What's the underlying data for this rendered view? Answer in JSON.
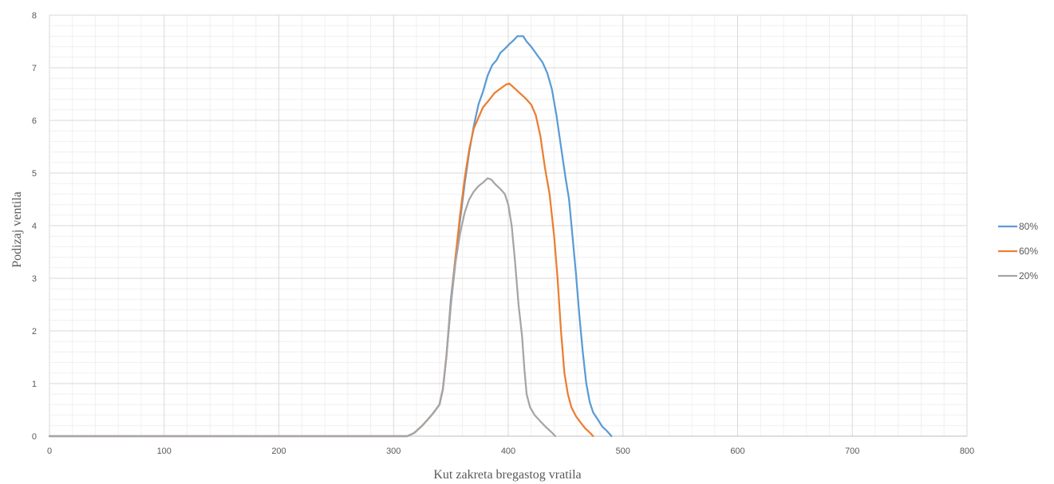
{
  "chart_data": {
    "type": "line",
    "title": "",
    "xlabel": "Kut zakreta bregastog vratila",
    "ylabel": "Podizaj ventila",
    "xlim": [
      0,
      800
    ],
    "ylim": [
      0,
      8
    ],
    "x_ticks": [
      "0",
      "100",
      "200",
      "300",
      "400",
      "500",
      "600",
      "700",
      "800"
    ],
    "y_ticks": [
      "0",
      "1",
      "2",
      "3",
      "4",
      "5",
      "6",
      "7",
      "8"
    ],
    "x_major_step": 100,
    "x_minor_step": 20,
    "y_major_step": 1,
    "y_minor_step": 0.2,
    "grid": true,
    "legend_position": "right",
    "series": [
      {
        "name": "80%",
        "color": "#5B9BD5",
        "points": [
          [
            0,
            0
          ],
          [
            312,
            0
          ],
          [
            318,
            0.06
          ],
          [
            325,
            0.2
          ],
          [
            330,
            0.32
          ],
          [
            335,
            0.45
          ],
          [
            340,
            0.6
          ],
          [
            343,
            0.9
          ],
          [
            346,
            1.5
          ],
          [
            350,
            2.6
          ],
          [
            354,
            3.4
          ],
          [
            358,
            4.1
          ],
          [
            362,
            4.8
          ],
          [
            366,
            5.4
          ],
          [
            370,
            5.9
          ],
          [
            374,
            6.3
          ],
          [
            378,
            6.55
          ],
          [
            382,
            6.85
          ],
          [
            386,
            7.05
          ],
          [
            390,
            7.15
          ],
          [
            393,
            7.28
          ],
          [
            397,
            7.36
          ],
          [
            401,
            7.45
          ],
          [
            405,
            7.53
          ],
          [
            408,
            7.6
          ],
          [
            413,
            7.6
          ],
          [
            416,
            7.5
          ],
          [
            420,
            7.4
          ],
          [
            425,
            7.25
          ],
          [
            430,
            7.1
          ],
          [
            434,
            6.9
          ],
          [
            438,
            6.6
          ],
          [
            442,
            6.1
          ],
          [
            446,
            5.5
          ],
          [
            450,
            4.9
          ],
          [
            453,
            4.5
          ],
          [
            456,
            3.8
          ],
          [
            459,
            3.1
          ],
          [
            462,
            2.3
          ],
          [
            465,
            1.6
          ],
          [
            468,
            1.0
          ],
          [
            471,
            0.65
          ],
          [
            474,
            0.45
          ],
          [
            478,
            0.32
          ],
          [
            482,
            0.18
          ],
          [
            486,
            0.1
          ],
          [
            490,
            0
          ]
        ]
      },
      {
        "name": "60%",
        "color": "#ED7D31",
        "points": [
          [
            0,
            0
          ],
          [
            312,
            0
          ],
          [
            318,
            0.06
          ],
          [
            325,
            0.2
          ],
          [
            330,
            0.32
          ],
          [
            335,
            0.45
          ],
          [
            340,
            0.6
          ],
          [
            343,
            0.9
          ],
          [
            346,
            1.5
          ],
          [
            350,
            2.5
          ],
          [
            354,
            3.4
          ],
          [
            358,
            4.2
          ],
          [
            362,
            4.9
          ],
          [
            366,
            5.45
          ],
          [
            370,
            5.85
          ],
          [
            374,
            6.05
          ],
          [
            378,
            6.25
          ],
          [
            383,
            6.38
          ],
          [
            388,
            6.52
          ],
          [
            393,
            6.6
          ],
          [
            398,
            6.68
          ],
          [
            401,
            6.7
          ],
          [
            405,
            6.62
          ],
          [
            410,
            6.52
          ],
          [
            415,
            6.42
          ],
          [
            420,
            6.3
          ],
          [
            424,
            6.1
          ],
          [
            428,
            5.7
          ],
          [
            432,
            5.1
          ],
          [
            436,
            4.6
          ],
          [
            440,
            3.8
          ],
          [
            443,
            3.0
          ],
          [
            446,
            2.0
          ],
          [
            449,
            1.2
          ],
          [
            452,
            0.8
          ],
          [
            455,
            0.55
          ],
          [
            459,
            0.38
          ],
          [
            463,
            0.26
          ],
          [
            467,
            0.15
          ],
          [
            471,
            0.07
          ],
          [
            474,
            0
          ]
        ]
      },
      {
        "name": "20%",
        "color": "#A5A5A5",
        "points": [
          [
            0,
            0
          ],
          [
            312,
            0
          ],
          [
            318,
            0.06
          ],
          [
            325,
            0.2
          ],
          [
            330,
            0.32
          ],
          [
            335,
            0.45
          ],
          [
            340,
            0.6
          ],
          [
            343,
            0.9
          ],
          [
            346,
            1.5
          ],
          [
            350,
            2.5
          ],
          [
            354,
            3.3
          ],
          [
            358,
            3.85
          ],
          [
            362,
            4.25
          ],
          [
            366,
            4.5
          ],
          [
            370,
            4.65
          ],
          [
            374,
            4.75
          ],
          [
            378,
            4.82
          ],
          [
            382,
            4.9
          ],
          [
            385,
            4.88
          ],
          [
            389,
            4.78
          ],
          [
            393,
            4.7
          ],
          [
            397,
            4.6
          ],
          [
            400,
            4.4
          ],
          [
            403,
            4.0
          ],
          [
            406,
            3.3
          ],
          [
            409,
            2.5
          ],
          [
            412,
            1.9
          ],
          [
            414,
            1.3
          ],
          [
            416,
            0.8
          ],
          [
            419,
            0.55
          ],
          [
            423,
            0.4
          ],
          [
            428,
            0.28
          ],
          [
            433,
            0.17
          ],
          [
            438,
            0.07
          ],
          [
            441,
            0
          ]
        ]
      }
    ]
  }
}
